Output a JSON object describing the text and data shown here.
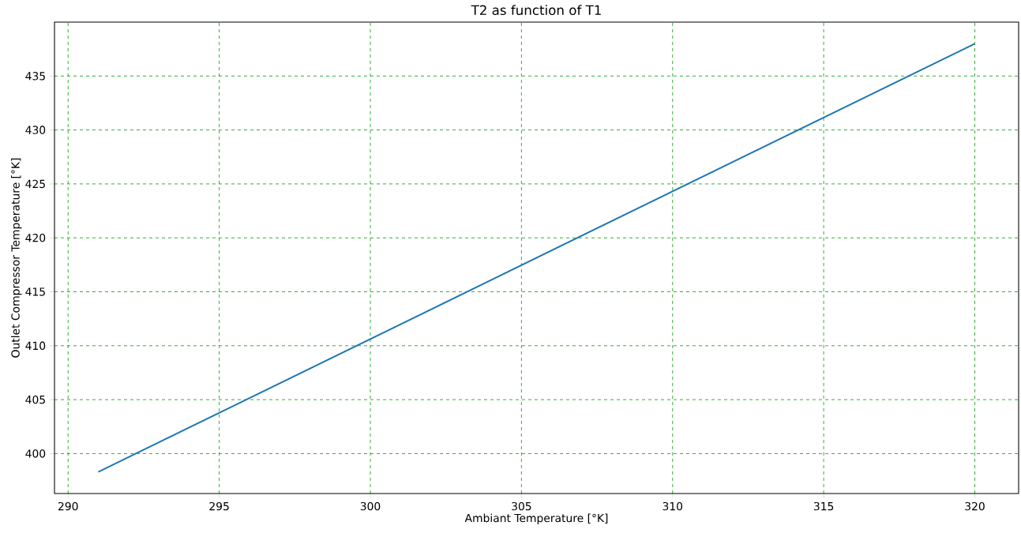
{
  "chart_data": {
    "type": "line",
    "title": "T2 as function of T1",
    "xlabel": "Ambiant Temperature [°K]",
    "ylabel": "Outlet Compressor Temperature [°K]",
    "x": [
      291,
      320
    ],
    "series": [
      {
        "color": "#1f77b4",
        "values": [
          398.3,
          438.0
        ]
      }
    ],
    "xlim": [
      289.55,
      321.45
    ],
    "ylim": [
      396.3,
      440.0
    ],
    "xticks": [
      290,
      295,
      300,
      305,
      310,
      315,
      320
    ],
    "yticks": [
      400,
      405,
      410,
      415,
      420,
      425,
      430,
      435
    ],
    "grid": true,
    "line_style": "solid",
    "marker": "none"
  }
}
